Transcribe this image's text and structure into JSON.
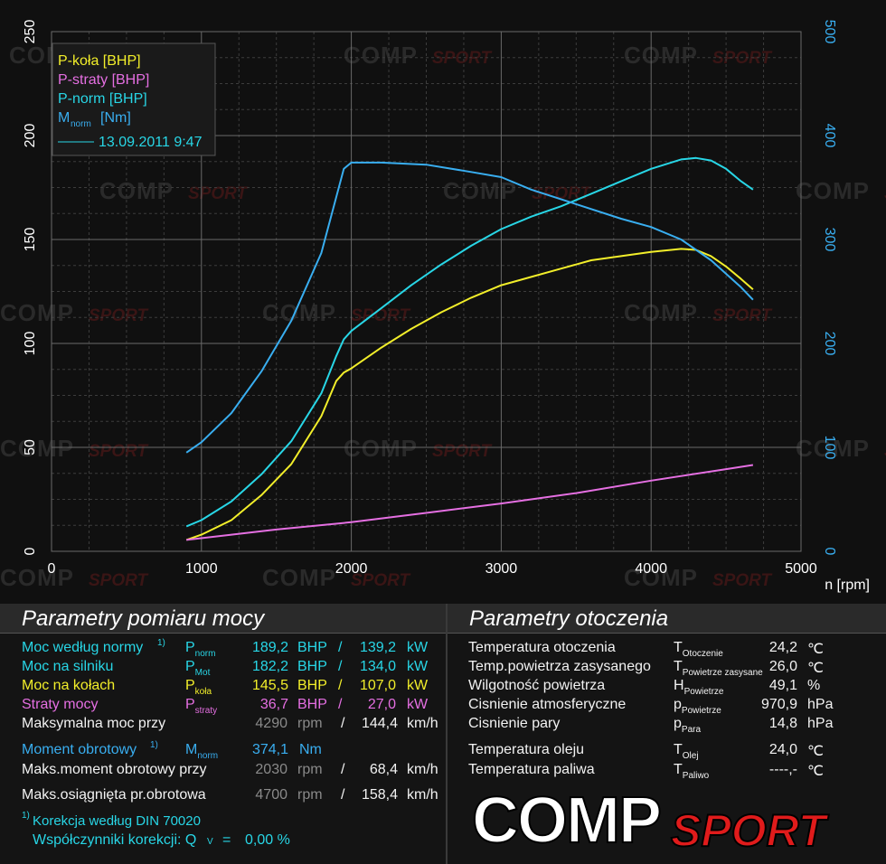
{
  "chart_data": {
    "type": "line",
    "xlabel": "n [rpm]",
    "xlim": [
      0,
      5000
    ],
    "x_ticks": [
      0,
      1000,
      2000,
      3000,
      4000,
      5000
    ],
    "ylim_left": [
      0,
      250
    ],
    "y_ticks_left": [
      0,
      50,
      100,
      150,
      200,
      250
    ],
    "ylim_right": [
      0,
      500
    ],
    "y_ticks_right": [
      0,
      100,
      200,
      300,
      400,
      500
    ],
    "grid": true,
    "legend_position": "top-left",
    "legend": {
      "entries": [
        "P-koła [BHP]",
        "P-straty [BHP]",
        "P-norm [BHP]"
      ],
      "torque_entry": "M",
      "torque_sub": "norm",
      "torque_unit": "[Nm]",
      "date": "13.09.2011 9:47"
    },
    "series": [
      {
        "name": "P-koła [BHP]",
        "axis": "left",
        "color": "#f2ee2a",
        "x": [
          900,
          1000,
          1200,
          1400,
          1600,
          1800,
          1900,
          1950,
          2000,
          2200,
          2400,
          2600,
          2800,
          3000,
          3200,
          3400,
          3600,
          3800,
          4000,
          4200,
          4300,
          4400,
          4500,
          4600,
          4680
        ],
        "y": [
          5.5,
          8,
          15,
          27,
          42,
          65,
          82,
          86,
          88,
          98,
          107,
          115,
          122,
          128,
          132,
          136,
          140,
          142,
          144,
          145.5,
          145,
          142,
          137,
          131,
          126
        ]
      },
      {
        "name": "P-straty [BHP]",
        "axis": "left",
        "color": "#e56fe2",
        "x": [
          900,
          1200,
          1500,
          2000,
          2500,
          3000,
          3500,
          4000,
          4500,
          4680
        ],
        "y": [
          5.5,
          8,
          10.5,
          14,
          18.5,
          23,
          28,
          34,
          39.5,
          41.5
        ]
      },
      {
        "name": "P-norm [BHP]",
        "axis": "left",
        "color": "#28d6e6",
        "x": [
          900,
          1000,
          1200,
          1400,
          1600,
          1800,
          1900,
          1950,
          2000,
          2200,
          2400,
          2600,
          2800,
          3000,
          3200,
          3400,
          3600,
          3800,
          4000,
          4200,
          4300,
          4400,
          4500,
          4600,
          4680
        ],
        "y": [
          12,
          15,
          24,
          37,
          53,
          76,
          94,
          102,
          106,
          117,
          128,
          138,
          147,
          155,
          161,
          166,
          172,
          178,
          184,
          188.5,
          189.2,
          188,
          184,
          178,
          174
        ]
      },
      {
        "name": "Mnorm [Nm]",
        "axis": "right",
        "color": "#39aef0",
        "x": [
          900,
          1000,
          1200,
          1400,
          1600,
          1800,
          1950,
          2000,
          2200,
          2500,
          2800,
          3000,
          3200,
          3500,
          3800,
          4000,
          4200,
          4400,
          4600,
          4680
        ],
        "y": [
          95,
          105,
          133,
          173,
          222,
          287,
          368,
          374,
          374,
          372,
          365,
          360,
          348,
          334,
          320,
          312,
          300,
          280,
          254,
          242
        ]
      }
    ]
  },
  "power_panel": {
    "title": "Parametry pomiaru mocy",
    "rows": [
      {
        "label": "Moc według normy",
        "note": "1)",
        "sym": "P",
        "sub": "norm",
        "val": "189,2",
        "u1": "BHP",
        "sep": "/",
        "val2": "139,2",
        "u2": "kW"
      },
      {
        "label": "Moc na silniku",
        "sym": "P",
        "sub": "Mot",
        "val": "182,2",
        "u1": "BHP",
        "sep": "/",
        "val2": "134,0",
        "u2": "kW"
      },
      {
        "label": "Moc na kołach",
        "sym": "P",
        "sub": "koła",
        "val": "145,5",
        "u1": "BHP",
        "sep": "/",
        "val2": "107,0",
        "u2": "kW"
      },
      {
        "label": "Straty mocy",
        "sym": "P",
        "sub": "straty",
        "val": "36,7",
        "u1": "BHP",
        "sep": "/",
        "val2": "27,0",
        "u2": "kW"
      },
      {
        "label": "Maksymalna moc przy",
        "rpm": "4290",
        "rpm_unit": "rpm",
        "sep": "/",
        "speed": "144,4",
        "speed_unit": "km/h"
      }
    ],
    "torque": {
      "label": "Moment obrotowy",
      "note": "1)",
      "sym": "M",
      "sub": "norm",
      "val": "374,1",
      "unit": "Nm"
    },
    "torque_at": {
      "label": "Maks.moment obrotowy przy",
      "rpm": "2030",
      "rpm_unit": "rpm",
      "sep": "/",
      "speed": "68,4",
      "speed_unit": "km/h"
    },
    "max_rpm": {
      "label": "Maks.osiągnięta pr.obrotowa",
      "rpm": "4700",
      "rpm_unit": "rpm",
      "sep": "/",
      "speed": "158,4",
      "speed_unit": "km/h"
    },
    "correction": {
      "note": "1)",
      "text": "Korekcja według DIN 70020",
      "factor_label": "Współczynniki korekcji: Q",
      "factor_sub": "V",
      "eq": "=",
      "factor_value": "0,00 %"
    }
  },
  "ambient_panel": {
    "title": "Parametry otoczenia",
    "rows": [
      {
        "label": "Temperatura otoczenia",
        "sym": "T",
        "sub": "Otoczenie",
        "val": "24,2",
        "unit": "℃"
      },
      {
        "label": "Temp.powietrza zasysanego",
        "sym": "T",
        "sub": "Powietrze zasysane",
        "val": "26,0",
        "unit": "℃"
      },
      {
        "label": "Wilgotność powietrza",
        "sym": "H",
        "sub": "Powietrze",
        "val": "49,1",
        "unit": "%"
      },
      {
        "label": "Cisnienie atmosferyczne",
        "sym": "p",
        "sub": "Powietrze",
        "val": "970,9",
        "unit": "hPa"
      },
      {
        "label": "Cisnienie pary",
        "sym": "p",
        "sub": "Para",
        "val": "14,8",
        "unit": "hPa"
      },
      {
        "label": "Temperatura oleju",
        "sym": "T",
        "sub": "Olej",
        "val": "24,0",
        "unit": "℃"
      },
      {
        "label": "Temperatura paliwa",
        "sym": "T",
        "sub": "Paliwo",
        "val": "----,-",
        "unit": "℃"
      }
    ]
  },
  "watermark": {
    "main": "COMP",
    "accent": "SPORT"
  },
  "logo": {
    "main": "COMP",
    "accent": "SPORT"
  }
}
